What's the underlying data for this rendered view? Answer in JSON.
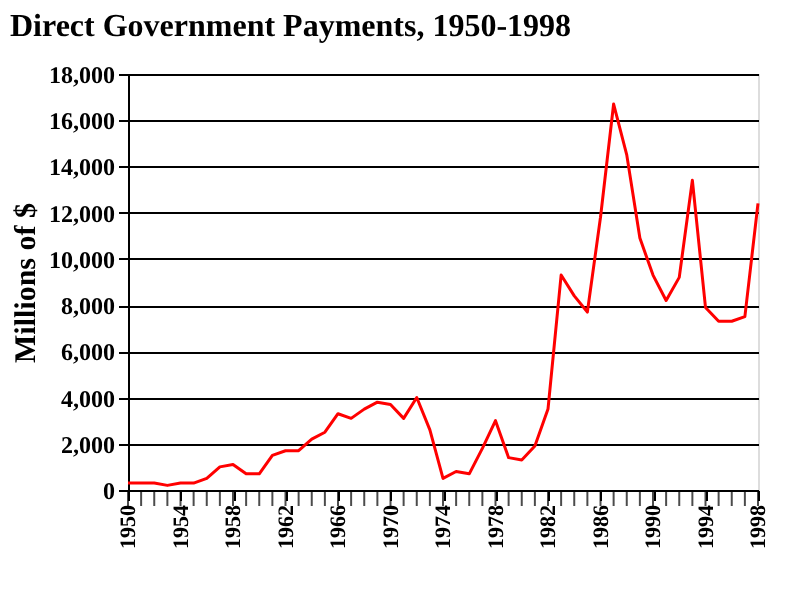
{
  "chart_data": {
    "type": "line",
    "title": "Direct Government Payments, 1950-1998",
    "ylabel": "Millions of $",
    "x": [
      1950,
      1951,
      1952,
      1953,
      1954,
      1955,
      1956,
      1957,
      1958,
      1959,
      1960,
      1961,
      1962,
      1963,
      1964,
      1965,
      1966,
      1967,
      1968,
      1969,
      1970,
      1971,
      1972,
      1973,
      1974,
      1975,
      1976,
      1977,
      1978,
      1979,
      1980,
      1981,
      1982,
      1983,
      1984,
      1985,
      1986,
      1987,
      1988,
      1989,
      1990,
      1991,
      1992,
      1993,
      1994,
      1995,
      1996,
      1997,
      1998
    ],
    "series": [
      {
        "color": "#ff0000",
        "values": [
          300,
          300,
          300,
          200,
          300,
          300,
          500,
          1000,
          1100,
          700,
          700,
          1500,
          1700,
          1700,
          2200,
          2500,
          3300,
          3100,
          3500,
          3800,
          3700,
          3100,
          4000,
          2600,
          500,
          800,
          700,
          1800,
          3000,
          1400,
          1300,
          1900,
          3500,
          9300,
          8400,
          7700,
          11800,
          16700,
          14500,
          10900,
          9300,
          8200,
          9200,
          13400,
          7900,
          7300,
          7300,
          7500,
          12400
        ]
      }
    ],
    "xlim": [
      1950,
      1998
    ],
    "xticks": [
      1950,
      1954,
      1958,
      1962,
      1966,
      1970,
      1974,
      1978,
      1982,
      1986,
      1990,
      1994,
      1998
    ],
    "ylim": [
      0,
      18000
    ],
    "yticks": [
      {
        "value": 0,
        "label": "0"
      },
      {
        "value": 2000,
        "label": "2,000"
      },
      {
        "value": 4000,
        "label": "4,000"
      },
      {
        "value": 6000,
        "label": "6,000"
      },
      {
        "value": 8000,
        "label": "8,000"
      },
      {
        "value": 10000,
        "label": "10,000"
      },
      {
        "value": 12000,
        "label": "12,000"
      },
      {
        "value": 14000,
        "label": "14,000"
      },
      {
        "value": 16000,
        "label": "16,000"
      },
      {
        "value": 18000,
        "label": "18,000"
      }
    ],
    "grid": "y",
    "legend": false,
    "marker": "none",
    "line_style": "solid"
  }
}
